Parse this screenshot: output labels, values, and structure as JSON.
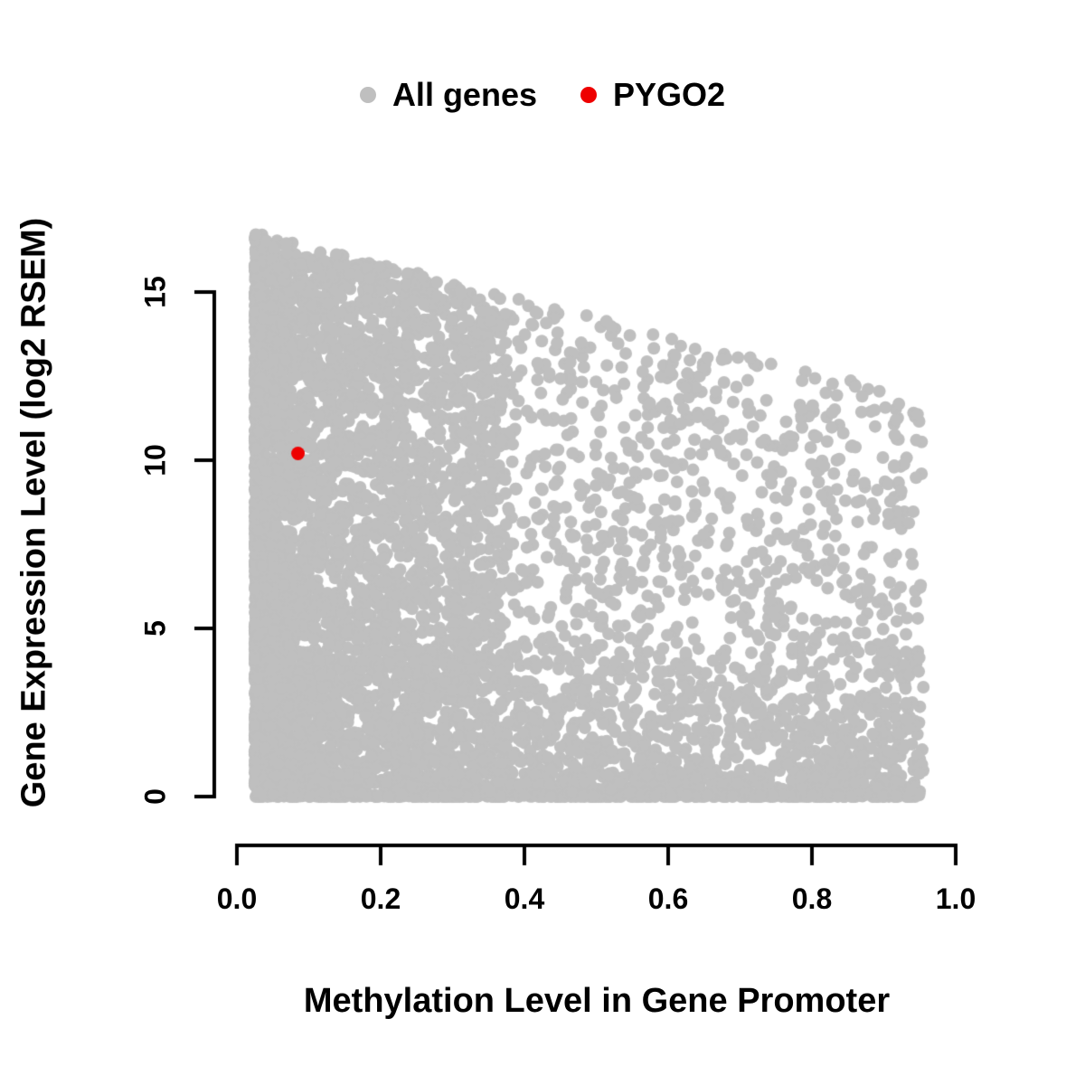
{
  "legend": {
    "items": [
      {
        "label": "All genes",
        "color": "#bfbfbf"
      },
      {
        "label": "PYGO2",
        "color": "#ee0000"
      }
    ]
  },
  "chart_data": {
    "type": "scatter",
    "title": "",
    "xlabel": "Methylation Level in Gene Promoter",
    "ylabel": "Gene Expression Level (log2 RSEM)",
    "xlim": [
      0,
      1
    ],
    "ylim": [
      0,
      15
    ],
    "grid": false,
    "legend_position": "top-center",
    "x_ticks": {
      "values": [
        0.0,
        0.2,
        0.4,
        0.6,
        0.8,
        1.0
      ],
      "labels": [
        "0.0",
        "0.2",
        "0.4",
        "0.6",
        "0.8",
        "1.0"
      ]
    },
    "y_ticks": {
      "values": [
        0,
        5,
        10,
        15
      ],
      "labels": [
        "0",
        "5",
        "10",
        "15"
      ]
    },
    "series": [
      {
        "name": "All genes",
        "color": "#bfbfbf",
        "representation": "dense point cloud; upper envelope of expression declines as promoter methylation increases; very dense column at low methylation (0.02-0.3) spanning expression 0-16.7; dense low-expression band (0-4) across all methylation levels; sparser scatter toward high methylation",
        "cloud": {
          "n": 6500,
          "seed": 20,
          "point_radius_px": 7,
          "x_max": 0.955,
          "envelope": {
            "intercept": 16.9,
            "slope": -5.3
          },
          "components": [
            {
              "weight": 0.42,
              "x": {
                "min": 0.025,
                "span": 0.35,
                "power": 2.0
              },
              "y": {
                "mode": "envelope",
                "power": 0.95
              }
            },
            {
              "weight": 0.25,
              "x": {
                "min": 0.025,
                "span": 0.93,
                "power": 1.0
              },
              "y": {
                "mode": "fixed",
                "max": 4.5,
                "power": 3.0
              }
            },
            {
              "weight": 0.33,
              "x": {
                "min": 0.025,
                "span": 0.93,
                "power": 1.3
              },
              "y": {
                "mode": "envelope",
                "power": 1.0
              }
            }
          ]
        }
      },
      {
        "name": "PYGO2",
        "color": "#ee0000",
        "points": [
          [
            0.085,
            10.2
          ]
        ],
        "point_radius_px": 7.5
      }
    ]
  }
}
